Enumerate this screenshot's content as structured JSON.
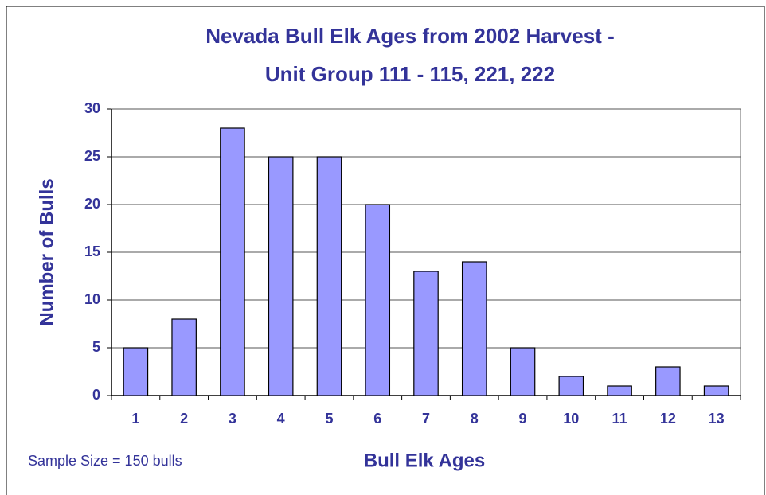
{
  "chart_data": {
    "type": "bar",
    "title": [
      "Nevada Bull Elk Ages from 2002 Harvest -",
      "Unit Group 111 - 115, 221, 222"
    ],
    "x_label": "Bull Elk Ages",
    "y_label": "Number of Bulls",
    "annotations": [
      "Sample Size = 150 bulls"
    ],
    "categories": [
      "1",
      "2",
      "3",
      "4",
      "5",
      "6",
      "7",
      "8",
      "9",
      "10",
      "11",
      "12",
      "13"
    ],
    "values": [
      5,
      8,
      28,
      25,
      25,
      20,
      13,
      14,
      5,
      2,
      1,
      3,
      1
    ],
    "color": "#9999ff",
    "ylim": [
      0,
      30
    ],
    "yticks": [
      0,
      5,
      10,
      15,
      20,
      25,
      30
    ],
    "grid": true
  }
}
